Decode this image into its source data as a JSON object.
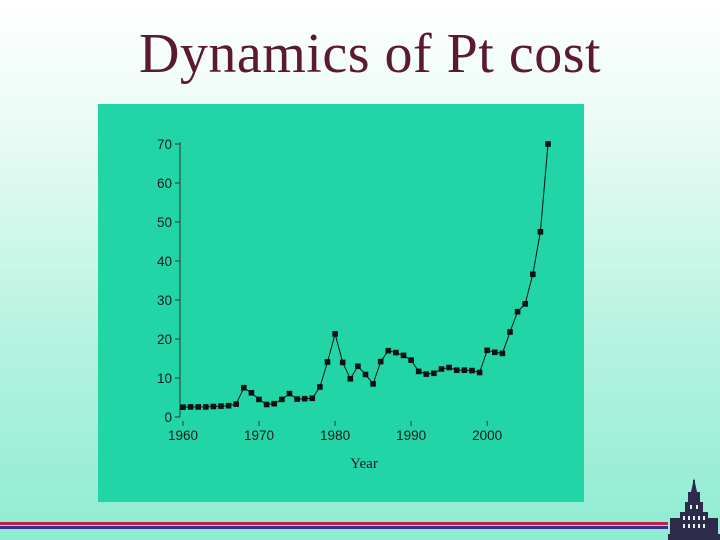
{
  "slide": {
    "title": "Dynamics of Pt cost"
  },
  "colors": {
    "panel": "#22d5a6",
    "title": "#5b1a2e",
    "series": "#111111",
    "footer_red": "#c0204a",
    "footer_blue": "#3a2f8a"
  },
  "icons": {
    "logo": "university-building-icon"
  },
  "chart_data": {
    "type": "line",
    "title": "",
    "xlabel": "Year",
    "ylabel": "",
    "xlim": [
      1960,
      2008
    ],
    "ylim": [
      0,
      70
    ],
    "xticks": [
      1960,
      1970,
      1980,
      1990,
      2000
    ],
    "yticks": [
      0,
      10,
      20,
      30,
      40,
      50,
      60,
      70
    ],
    "grid": false,
    "legend": "none",
    "series": [
      {
        "marker": "square",
        "x": [
          1960,
          1961,
          1962,
          1963,
          1964,
          1965,
          1966,
          1967,
          1968,
          1969,
          1970,
          1971,
          1972,
          1973,
          1974,
          1975,
          1976,
          1977,
          1978,
          1979,
          1980,
          1981,
          1982,
          1983,
          1984,
          1985,
          1986,
          1987,
          1988,
          1989,
          1990,
          1991,
          1992,
          1993,
          1994,
          1995,
          1996,
          1997,
          1998,
          1999,
          2000,
          2001,
          2002,
          2003,
          2004,
          2005,
          2006,
          2007,
          2008
        ],
        "y": [
          2.5,
          2.6,
          2.6,
          2.6,
          2.7,
          2.8,
          2.9,
          3.3,
          7.5,
          6.2,
          4.5,
          3.2,
          3.4,
          4.5,
          6.0,
          4.6,
          4.7,
          4.8,
          7.7,
          14.1,
          21.3,
          14.0,
          9.8,
          13.0,
          10.9,
          8.5,
          14.2,
          17.0,
          16.5,
          15.8,
          14.6,
          11.7,
          11.0,
          11.2,
          12.3,
          12.7,
          12.0,
          12.0,
          11.9,
          11.4,
          17.1,
          16.6,
          16.3,
          21.8,
          27.0,
          29.0,
          36.6,
          47.5,
          70.0
        ]
      }
    ]
  }
}
